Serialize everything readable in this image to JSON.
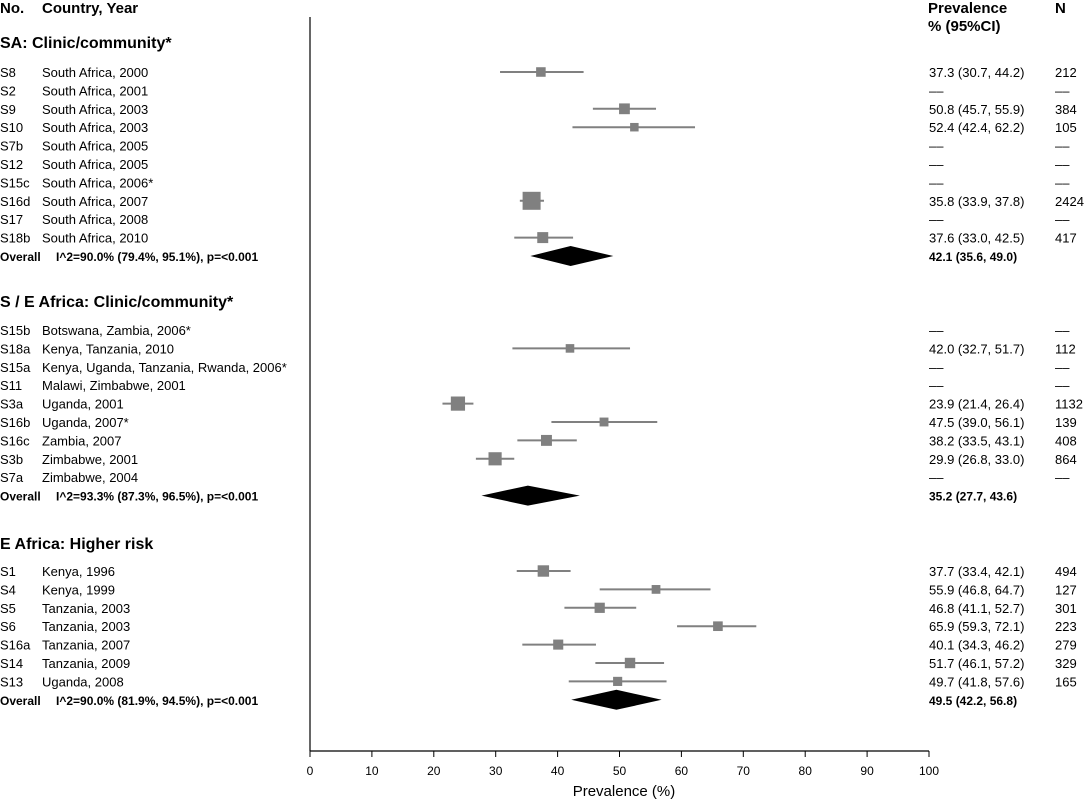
{
  "headers": {
    "no": "No.",
    "country_year": "Country, Year",
    "prevalence": "Prevalence",
    "ci": "% (95%CI)",
    "n": "N"
  },
  "chart_data": {
    "type": "forest",
    "xlabel": "Prevalence (%)",
    "xlim": [
      0,
      100
    ],
    "xticks": [
      0,
      10,
      20,
      30,
      40,
      50,
      60,
      70,
      80,
      90,
      100
    ],
    "groups": [
      {
        "title": "SA: Clinic/community*",
        "studies": [
          {
            "id": "S8",
            "label": "South Africa, 2000",
            "est": 37.3,
            "lo": 30.7,
            "hi": 44.2,
            "ci_text": "37.3 (30.7, 44.2)",
            "n": "212"
          },
          {
            "id": "S2",
            "label": "South Africa, 2001",
            "est": null,
            "lo": null,
            "hi": null,
            "ci_text": "––",
            "n": "––"
          },
          {
            "id": "S9",
            "label": "South Africa, 2003",
            "est": 50.8,
            "lo": 45.7,
            "hi": 55.9,
            "ci_text": "50.8 (45.7, 55.9)",
            "n": "384"
          },
          {
            "id": "S10",
            "label": "South Africa, 2003",
            "est": 52.4,
            "lo": 42.4,
            "hi": 62.2,
            "ci_text": "52.4 (42.4, 62.2)",
            "n": "105"
          },
          {
            "id": "S7b",
            "label": "South Africa, 2005",
            "est": null,
            "lo": null,
            "hi": null,
            "ci_text": "––",
            "n": "––"
          },
          {
            "id": "S12",
            "label": "South Africa, 2005",
            "est": null,
            "lo": null,
            "hi": null,
            "ci_text": "––",
            "n": "––"
          },
          {
            "id": "S15c",
            "label": "South Africa, 2006*",
            "est": null,
            "lo": null,
            "hi": null,
            "ci_text": "––",
            "n": "––"
          },
          {
            "id": "S16d",
            "label": "South Africa, 2007",
            "est": 35.8,
            "lo": 33.9,
            "hi": 37.8,
            "ci_text": "35.8 (33.9, 37.8)",
            "n": "2424"
          },
          {
            "id": "S17",
            "label": "South Africa, 2008",
            "est": null,
            "lo": null,
            "hi": null,
            "ci_text": "––",
            "n": "––"
          },
          {
            "id": "S18b",
            "label": "South Africa, 2010",
            "est": 37.6,
            "lo": 33.0,
            "hi": 42.5,
            "ci_text": "37.6 (33.0, 42.5)",
            "n": "417"
          }
        ],
        "overall": {
          "label": "Overall",
          "het": "I^2=90.0% (79.4%, 95.1%), p=<0.001",
          "est": 42.1,
          "lo": 35.6,
          "hi": 49.0,
          "ci_text": "42.1 (35.6, 49.0)"
        }
      },
      {
        "title": "S / E Africa: Clinic/community*",
        "studies": [
          {
            "id": "S15b",
            "label": "Botswana, Zambia, 2006*",
            "est": null,
            "lo": null,
            "hi": null,
            "ci_text": "––",
            "n": "––"
          },
          {
            "id": "S18a",
            "label": "Kenya, Tanzania, 2010",
            "est": 42.0,
            "lo": 32.7,
            "hi": 51.7,
            "ci_text": "42.0 (32.7, 51.7)",
            "n": "112"
          },
          {
            "id": "S15a",
            "label": "Kenya, Uganda, Tanzania, Rwanda, 2006*",
            "est": null,
            "lo": null,
            "hi": null,
            "ci_text": "––",
            "n": "––"
          },
          {
            "id": "S11",
            "label": "Malawi, Zimbabwe, 2001",
            "est": null,
            "lo": null,
            "hi": null,
            "ci_text": "––",
            "n": "––"
          },
          {
            "id": "S3a",
            "label": "Uganda, 2001",
            "est": 23.9,
            "lo": 21.4,
            "hi": 26.4,
            "ci_text": "23.9 (21.4, 26.4)",
            "n": "1132"
          },
          {
            "id": "S16b",
            "label": "Uganda, 2007*",
            "est": 47.5,
            "lo": 39.0,
            "hi": 56.1,
            "ci_text": "47.5 (39.0, 56.1)",
            "n": "139"
          },
          {
            "id": "S16c",
            "label": "Zambia, 2007",
            "est": 38.2,
            "lo": 33.5,
            "hi": 43.1,
            "ci_text": "38.2 (33.5, 43.1)",
            "n": "408"
          },
          {
            "id": "S3b",
            "label": "Zimbabwe, 2001",
            "est": 29.9,
            "lo": 26.8,
            "hi": 33.0,
            "ci_text": "29.9 (26.8, 33.0)",
            "n": "864"
          },
          {
            "id": "S7a",
            "label": "Zimbabwe, 2004",
            "est": null,
            "lo": null,
            "hi": null,
            "ci_text": "––",
            "n": "––"
          }
        ],
        "overall": {
          "label": "Overall",
          "het": "I^2=93.3% (87.3%, 96.5%), p=<0.001",
          "est": 35.2,
          "lo": 27.7,
          "hi": 43.6,
          "ci_text": "35.2 (27.7, 43.6)"
        }
      },
      {
        "title": "E Africa: Higher risk",
        "studies": [
          {
            "id": "S1",
            "label": "Kenya, 1996",
            "est": 37.7,
            "lo": 33.4,
            "hi": 42.1,
            "ci_text": "37.7 (33.4, 42.1)",
            "n": "494"
          },
          {
            "id": "S4",
            "label": "Kenya, 1999",
            "est": 55.9,
            "lo": 46.8,
            "hi": 64.7,
            "ci_text": "55.9 (46.8, 64.7)",
            "n": "127"
          },
          {
            "id": "S5",
            "label": "Tanzania, 2003",
            "est": 46.8,
            "lo": 41.1,
            "hi": 52.7,
            "ci_text": "46.8 (41.1, 52.7)",
            "n": "301"
          },
          {
            "id": "S6",
            "label": "Tanzania, 2003",
            "est": 65.9,
            "lo": 59.3,
            "hi": 72.1,
            "ci_text": "65.9 (59.3, 72.1)",
            "n": "223"
          },
          {
            "id": "S16a",
            "label": "Tanzania, 2007",
            "est": 40.1,
            "lo": 34.3,
            "hi": 46.2,
            "ci_text": "40.1 (34.3, 46.2)",
            "n": "279"
          },
          {
            "id": "S14",
            "label": "Tanzania, 2009",
            "est": 51.7,
            "lo": 46.1,
            "hi": 57.2,
            "ci_text": "51.7 (46.1, 57.2)",
            "n": "329"
          },
          {
            "id": "S13",
            "label": "Uganda, 2008",
            "est": 49.7,
            "lo": 41.8,
            "hi": 57.6,
            "ci_text": "49.7 (41.8, 57.6)",
            "n": "165"
          }
        ],
        "overall": {
          "label": "Overall",
          "het": "I^2=90.0% (81.9%, 94.5%), p=<0.001",
          "est": 49.5,
          "lo": 42.2,
          "hi": 56.8,
          "ci_text": "49.5 (42.2, 56.8)"
        }
      }
    ]
  },
  "colors": {
    "marker": "#808080",
    "ci_line": "#808080",
    "diamond": "#000000",
    "axis": "#000000",
    "text": "#000000"
  }
}
